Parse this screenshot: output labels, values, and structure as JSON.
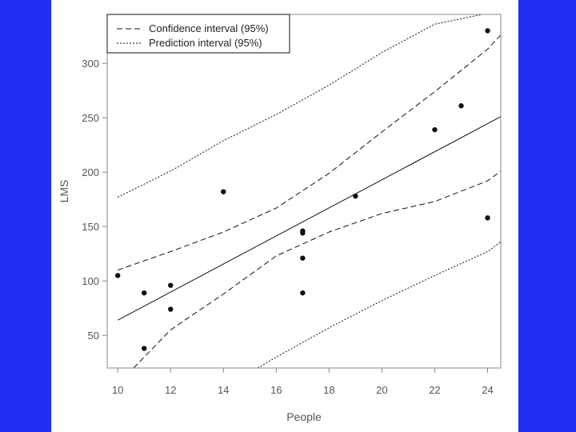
{
  "colors": {
    "background": "#1f2ef2",
    "panel": "#ffffff",
    "ink": "#111111"
  },
  "chart_data": {
    "type": "scatter",
    "title": "",
    "xlabel": "People",
    "ylabel": "LMS",
    "xlim": [
      9.6,
      24.5
    ],
    "ylim": [
      20,
      345
    ],
    "xticks": [
      10,
      12,
      14,
      16,
      18,
      20,
      22,
      24
    ],
    "yticks": [
      50,
      100,
      150,
      200,
      250,
      300
    ],
    "grid": false,
    "legend_position": "top-left",
    "legend": [
      {
        "label": "Confidence interval (95%)",
        "style": "dashed"
      },
      {
        "label": "Prediction interval (95%)",
        "style": "dotted"
      }
    ],
    "points": [
      {
        "x": 10,
        "y": 105
      },
      {
        "x": 11,
        "y": 89
      },
      {
        "x": 11,
        "y": 38
      },
      {
        "x": 12,
        "y": 96
      },
      {
        "x": 12,
        "y": 74
      },
      {
        "x": 14,
        "y": 182
      },
      {
        "x": 17,
        "y": 146
      },
      {
        "x": 17,
        "y": 144
      },
      {
        "x": 17,
        "y": 121
      },
      {
        "x": 17,
        "y": 89
      },
      {
        "x": 19,
        "y": 178
      },
      {
        "x": 22,
        "y": 239
      },
      {
        "x": 23,
        "y": 261
      },
      {
        "x": 24,
        "y": 330
      },
      {
        "x": 24,
        "y": 158
      }
    ],
    "lines": {
      "fit": {
        "style": "solid",
        "x": [
          10,
          24.5
        ],
        "y": [
          64,
          251
        ]
      },
      "ci_upper": {
        "style": "dashed",
        "x": [
          10,
          12,
          14,
          16,
          18,
          20,
          22,
          24,
          24.5
        ],
        "y": [
          110,
          127,
          145,
          167,
          199,
          237,
          274,
          313,
          326
        ]
      },
      "ci_lower": {
        "style": "dashed",
        "x": [
          10.6,
          12,
          14,
          16,
          18,
          20,
          22,
          24,
          24.5
        ],
        "y": [
          20,
          55,
          88,
          123,
          145,
          162,
          173,
          192,
          201
        ]
      },
      "pi_upper": {
        "style": "dotted",
        "x": [
          10,
          12,
          14,
          16,
          18,
          20,
          22,
          23.8
        ],
        "y": [
          177,
          201,
          229,
          253,
          280,
          310,
          336,
          345
        ]
      },
      "pi_lower": {
        "style": "dotted",
        "x": [
          15.3,
          16,
          18,
          20,
          22,
          24,
          24.5
        ],
        "y": [
          20,
          30,
          57,
          82,
          105,
          127,
          136
        ]
      }
    }
  }
}
